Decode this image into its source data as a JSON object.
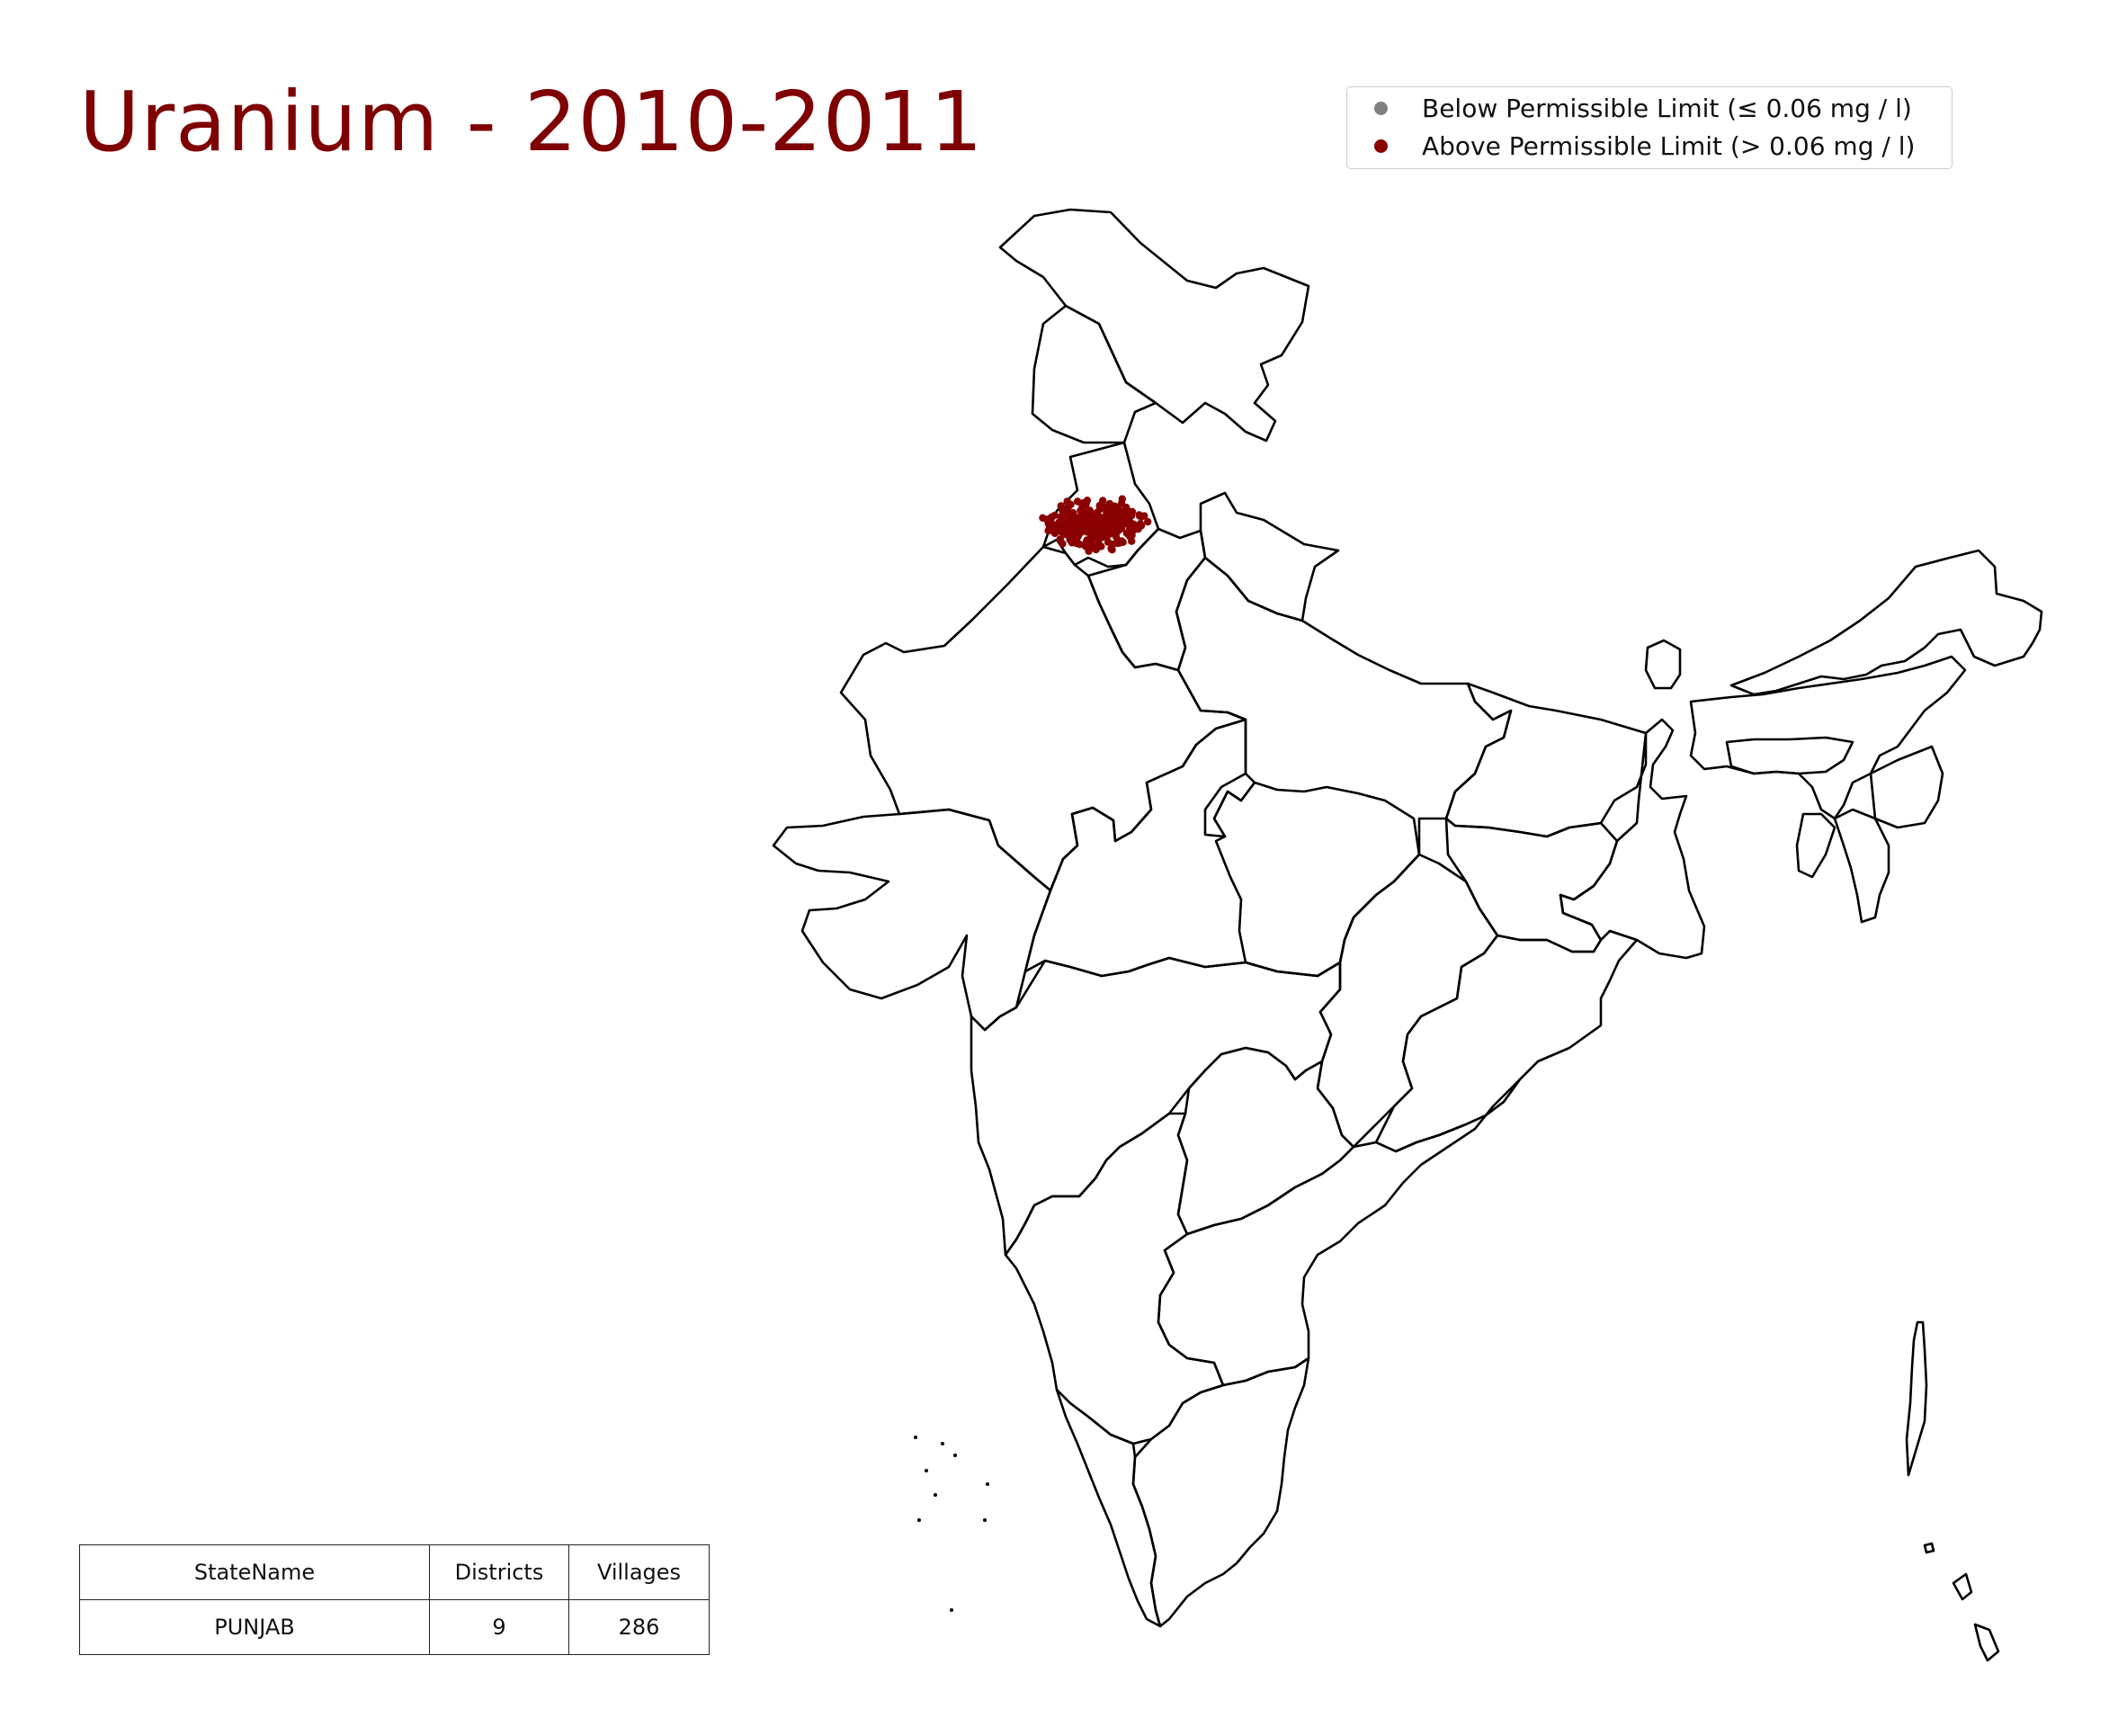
{
  "title": "Uranium - 2010-2011",
  "legend": {
    "entries": [
      {
        "label": "Below Permissible Limit (≤ 0.06 mg / l)",
        "color": "#808080"
      },
      {
        "label": "Above Permissible Limit (> 0.06 mg / l)",
        "color": "#8b0000"
      }
    ]
  },
  "map": {
    "region": "India",
    "boundary_color": "#000000",
    "sample_color": "#8b0000",
    "sample_cluster_state": "PUNJAB"
  },
  "summary_table": {
    "headers": [
      "StateName",
      "Districts",
      "Villages"
    ],
    "rows": [
      [
        "PUNJAB",
        "9",
        "286"
      ]
    ]
  }
}
